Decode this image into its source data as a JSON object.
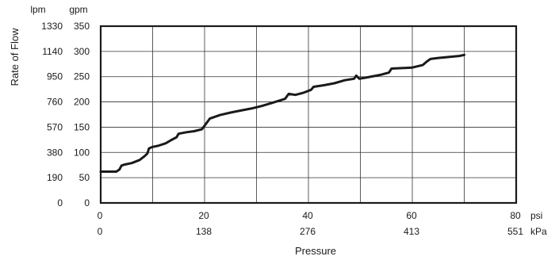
{
  "chart_data": {
    "type": "line",
    "title": "",
    "ylabel": "Rate of Flow",
    "xlabel": "Pressure",
    "y_unit_left": "lpm",
    "y_unit_right": "gpm",
    "x_unit_top": "psi",
    "x_unit_bottom": "kPa",
    "xlim": [
      0,
      80
    ],
    "ylim": [
      0,
      350
    ],
    "grid": true,
    "x_ticks": [
      0,
      10,
      20,
      30,
      40,
      50,
      60,
      70,
      80
    ],
    "y_ticks": [
      0,
      50,
      100,
      150,
      200,
      250,
      300,
      350
    ],
    "x_tick_labels_psi": [
      {
        "value": 0,
        "label": "0"
      },
      {
        "value": 20,
        "label": "20"
      },
      {
        "value": 40,
        "label": "40"
      },
      {
        "value": 60,
        "label": "60"
      },
      {
        "value": 80,
        "label": "80"
      }
    ],
    "x_tick_labels_kpa": [
      {
        "value": 0,
        "label": "0"
      },
      {
        "value": 20,
        "label": "138"
      },
      {
        "value": 40,
        "label": "276"
      },
      {
        "value": 60,
        "label": "413"
      },
      {
        "value": 80,
        "label": "551"
      }
    ],
    "y_tick_labels_gpm": [
      {
        "value": 0,
        "label": "0"
      },
      {
        "value": 50,
        "label": "50"
      },
      {
        "value": 100,
        "label": "100"
      },
      {
        "value": 150,
        "label": "150"
      },
      {
        "value": 200,
        "label": "200"
      },
      {
        "value": 250,
        "label": "250"
      },
      {
        "value": 300,
        "label": "300"
      },
      {
        "value": 350,
        "label": "350"
      }
    ],
    "y_tick_labels_lpm": [
      {
        "value": 0,
        "label": "0"
      },
      {
        "value": 50,
        "label": "190"
      },
      {
        "value": 100,
        "label": "380"
      },
      {
        "value": 150,
        "label": "570"
      },
      {
        "value": 200,
        "label": "760"
      },
      {
        "value": 250,
        "label": "950"
      },
      {
        "value": 300,
        "label": "1140"
      },
      {
        "value": 350,
        "label": "1330"
      }
    ],
    "series": [
      {
        "values": [
          {
            "x": 0,
            "y": 62
          },
          {
            "x": 3.0,
            "y": 62
          },
          {
            "x": 3.6,
            "y": 66
          },
          {
            "x": 4.0,
            "y": 74
          },
          {
            "x": 4.6,
            "y": 76
          },
          {
            "x": 6.0,
            "y": 79
          },
          {
            "x": 7.5,
            "y": 85
          },
          {
            "x": 8.5,
            "y": 93
          },
          {
            "x": 9.0,
            "y": 98
          },
          {
            "x": 9.3,
            "y": 108
          },
          {
            "x": 10.0,
            "y": 111
          },
          {
            "x": 11.0,
            "y": 113
          },
          {
            "x": 12.5,
            "y": 118
          },
          {
            "x": 13.5,
            "y": 124
          },
          {
            "x": 14.6,
            "y": 130
          },
          {
            "x": 15.0,
            "y": 137
          },
          {
            "x": 16.5,
            "y": 140
          },
          {
            "x": 18.0,
            "y": 142
          },
          {
            "x": 19.5,
            "y": 146
          },
          {
            "x": 20.5,
            "y": 160
          },
          {
            "x": 21.0,
            "y": 167
          },
          {
            "x": 23.0,
            "y": 174
          },
          {
            "x": 25.0,
            "y": 179
          },
          {
            "x": 27.0,
            "y": 183
          },
          {
            "x": 29.0,
            "y": 187
          },
          {
            "x": 31.0,
            "y": 192
          },
          {
            "x": 33.0,
            "y": 198
          },
          {
            "x": 35.5,
            "y": 206
          },
          {
            "x": 36.2,
            "y": 216
          },
          {
            "x": 37.5,
            "y": 214
          },
          {
            "x": 39.0,
            "y": 218
          },
          {
            "x": 40.5,
            "y": 224
          },
          {
            "x": 41.0,
            "y": 230
          },
          {
            "x": 43.0,
            "y": 233
          },
          {
            "x": 45.0,
            "y": 237
          },
          {
            "x": 47.0,
            "y": 243
          },
          {
            "x": 48.8,
            "y": 246
          },
          {
            "x": 49.2,
            "y": 252
          },
          {
            "x": 49.8,
            "y": 246
          },
          {
            "x": 51.0,
            "y": 248
          },
          {
            "x": 52.5,
            "y": 251
          },
          {
            "x": 54.0,
            "y": 254
          },
          {
            "x": 55.5,
            "y": 258
          },
          {
            "x": 56.0,
            "y": 266
          },
          {
            "x": 58.0,
            "y": 267
          },
          {
            "x": 60.0,
            "y": 268
          },
          {
            "x": 62.0,
            "y": 273
          },
          {
            "x": 62.8,
            "y": 280
          },
          {
            "x": 63.5,
            "y": 285
          },
          {
            "x": 65.0,
            "y": 287
          },
          {
            "x": 67.0,
            "y": 289
          },
          {
            "x": 69.0,
            "y": 291
          },
          {
            "x": 70.0,
            "y": 293
          }
        ]
      }
    ]
  }
}
